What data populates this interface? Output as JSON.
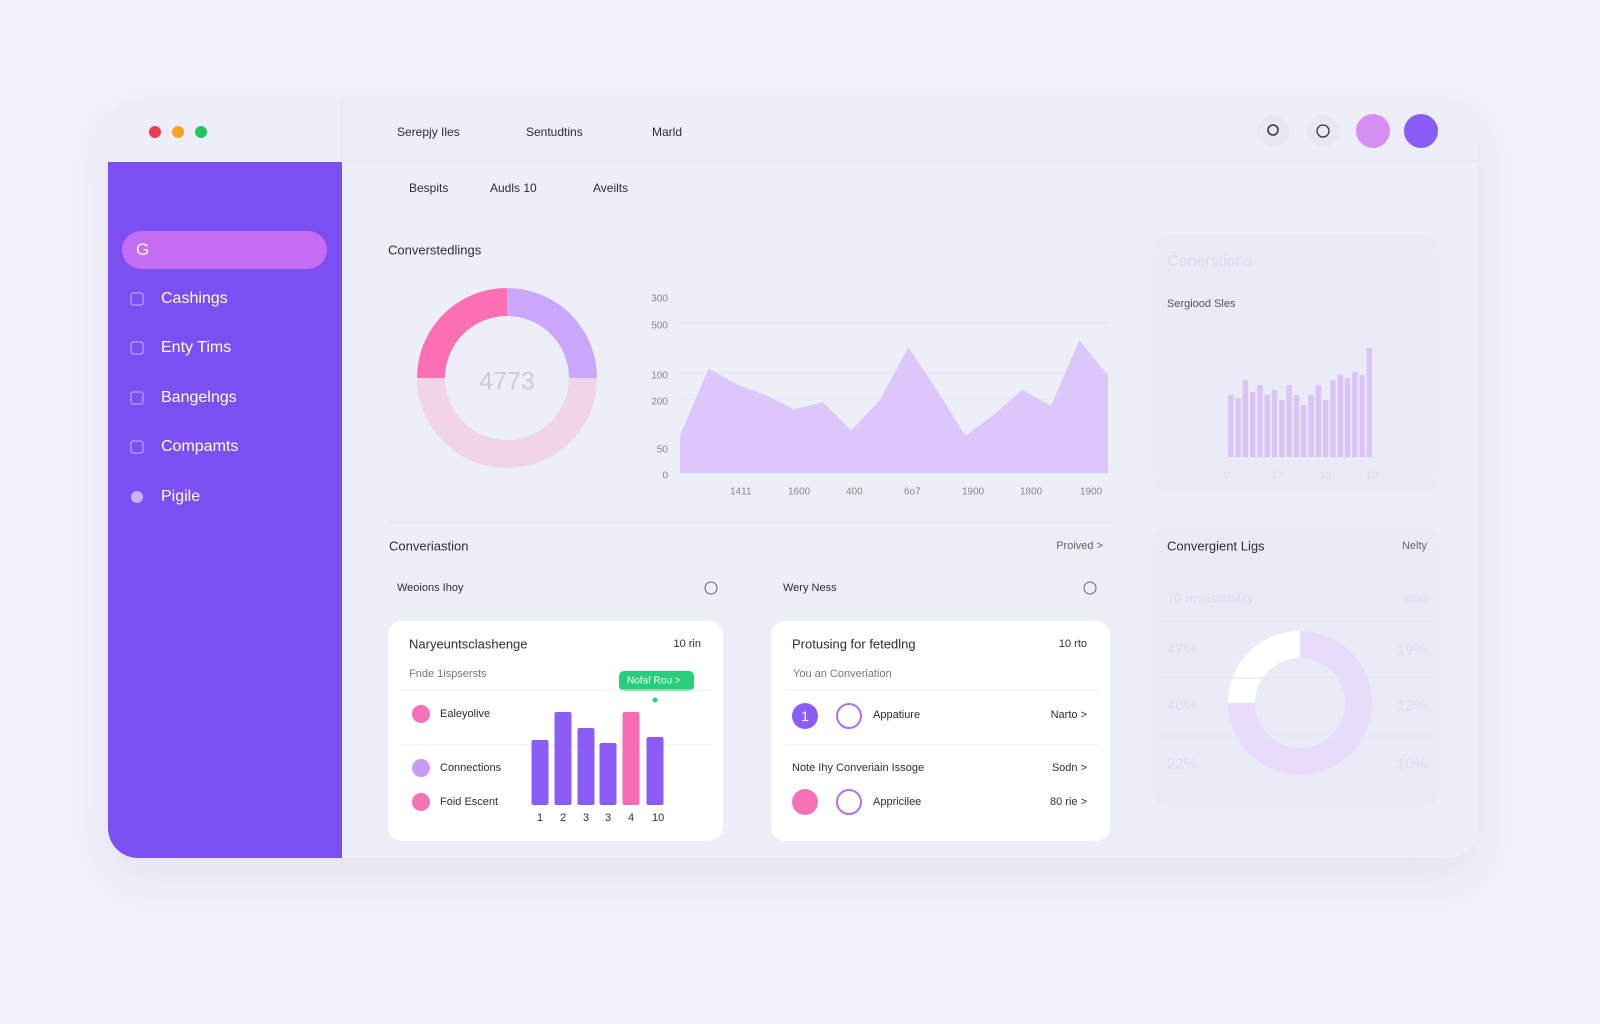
{
  "window": {
    "tabs": [
      "Serepjy Iles",
      "Sentudtins",
      "Marld"
    ],
    "subtabs": [
      "Bespits",
      "Audls 10",
      "Aveilts"
    ]
  },
  "sidebar": {
    "search": "G",
    "items": [
      "Cashings",
      "Enty Tims",
      "Bangelngs",
      "Compamts",
      "Pigile"
    ]
  },
  "overview": {
    "title": "Converstedlings",
    "donut": {
      "type": "pie",
      "center_label": "4773",
      "values": [
        25,
        50,
        25
      ],
      "colors": [
        "#c9a8fb",
        "#f1d4ea",
        "#fb6fb4"
      ]
    },
    "area": {
      "type": "area",
      "y_labels": [
        "300",
        "500",
        "100",
        "200",
        "50",
        "0"
      ],
      "x_labels": [
        "1411",
        "1600",
        "400",
        "6o7",
        "1900",
        "1800",
        "1900"
      ],
      "values": [
        21,
        59,
        50,
        44,
        36,
        40,
        24,
        41,
        71,
        47,
        21,
        33,
        47,
        38,
        75,
        55
      ],
      "ylim": [
        0,
        100
      ],
      "color": "#dcc6fa",
      "grid": true
    }
  },
  "side_panel": {
    "title": "Conerstions",
    "subtitle": "Sergiood Sles",
    "bars": {
      "type": "bar",
      "values": [
        62,
        59,
        77,
        65,
        72,
        62,
        67,
        57,
        72,
        62,
        52,
        62,
        72,
        57,
        77,
        82,
        79,
        85,
        82,
        109
      ],
      "ylim": [
        0,
        120
      ],
      "color": "#dcc3f7",
      "x_labels": [
        "0",
        "17",
        "10",
        "19"
      ]
    }
  },
  "conversation": {
    "title": "Converiastion",
    "link": "Proived >",
    "tabs": [
      "Weoions Ihoy",
      "Wery Ness"
    ],
    "card1": {
      "title": "Naryeuntsclashenge",
      "meta": "10 rin",
      "subtitle": "Fnde 1ispsersts",
      "items": [
        "Ealeyolive",
        "Connections",
        "Foid Escent"
      ],
      "badge": "Nofaf Rou >",
      "bars": {
        "type": "bar",
        "categories": [
          "1",
          "2",
          "3",
          "3",
          "4",
          "10"
        ],
        "values": [
          65,
          93,
          77,
          62,
          93,
          68
        ],
        "ylim": [
          0,
          100
        ],
        "colors": [
          "#8b5cf6",
          "#8b5cf6",
          "#8b5cf6",
          "#8b5cf6",
          "#f76bb5",
          "#8b5cf6"
        ]
      }
    },
    "card2": {
      "title": "Protusing for fetedlng",
      "meta": "10 rto",
      "subtitle": "You an Converiation",
      "rows": [
        {
          "number": "1",
          "label": "Appatiure",
          "action": "Narto >"
        },
        {
          "label": "Note Ihy Converiain Issoge",
          "action": "Sodn >"
        },
        {
          "label": "Appricilee",
          "action": "80 rie >"
        }
      ]
    }
  },
  "logs_panel": {
    "title": "Convergient Ligs",
    "meta": "Nelty",
    "rows": [
      [
        "70 revastobility",
        "600"
      ],
      [
        "47%",
        "19%"
      ],
      [
        "40%",
        "12%"
      ],
      [
        "22%",
        "10%"
      ]
    ],
    "donut": {
      "type": "pie",
      "values": [
        75,
        25
      ],
      "colors": [
        "#e9dcfb",
        "#ffffff"
      ]
    }
  }
}
